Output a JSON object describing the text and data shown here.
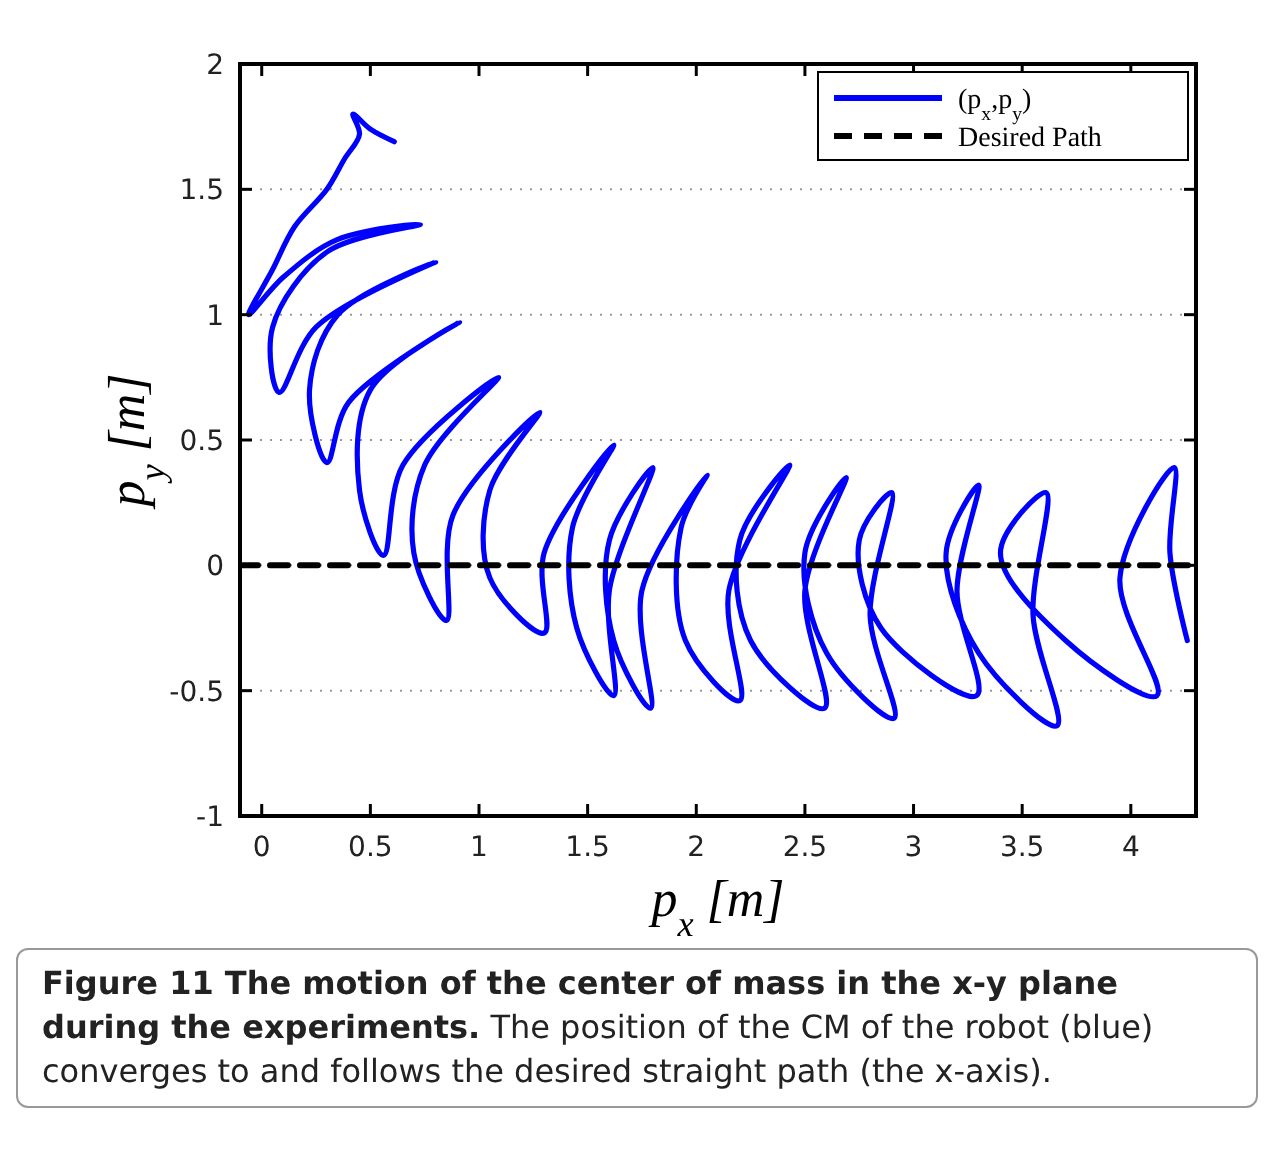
{
  "chart_data": {
    "type": "line",
    "title": "Figure 11 The motion of the center of mass in the x-y plane during the experiments.",
    "annotations": [
      "The position of the CM of the robot (blue) converges to and follows the desired straight path (the x-axis)."
    ],
    "xlabel": "p$_{x}$ [m]",
    "ylabel": "p$_{y}$ [m]",
    "xlim": [
      -0.1,
      4.3
    ],
    "ylim": [
      -1,
      2
    ],
    "xticks": [
      0,
      0.5,
      1,
      1.5,
      2,
      2.5,
      3,
      3.5,
      4
    ],
    "yticks": [
      -1,
      -0.5,
      0,
      0.5,
      1,
      1.5,
      2
    ],
    "grid": "y",
    "legend": "top right",
    "marker": "none",
    "series": [
      {
        "name": "(p$_{x}$,p$_{y}$)",
        "color": "#0000ff",
        "line_style": "solid",
        "x": [
          0.61,
          0.5,
          0.42,
          0.45,
          0.38,
          0.3,
          0.15,
          0.05,
          -0.06,
          0.1,
          0.35,
          0.73,
          0.3,
          0.05,
          0.08,
          0.25,
          0.8,
          0.35,
          0.22,
          0.3,
          0.4,
          0.91,
          0.5,
          0.45,
          0.56,
          0.65,
          1.09,
          0.75,
          0.7,
          0.85,
          0.88,
          1.28,
          1.05,
          1.05,
          1.3,
          1.3,
          1.62,
          1.43,
          1.45,
          1.62,
          1.6,
          1.8,
          1.6,
          1.62,
          1.79,
          1.75,
          2.05,
          1.93,
          1.95,
          2.2,
          2.15,
          2.43,
          2.2,
          2.25,
          2.59,
          2.5,
          2.69,
          2.5,
          2.6,
          2.91,
          2.8,
          2.9,
          2.75,
          2.85,
          3.29,
          3.2,
          3.3,
          3.15,
          3.3,
          3.66,
          3.55,
          3.61,
          3.4,
          3.7,
          4.12,
          3.95,
          4.2,
          4.18,
          4.26
        ],
        "values": [
          1.69,
          1.74,
          1.8,
          1.72,
          1.62,
          1.5,
          1.35,
          1.18,
          1.0,
          1.15,
          1.3,
          1.36,
          1.25,
          0.95,
          0.69,
          0.95,
          1.21,
          1.0,
          0.7,
          0.41,
          0.65,
          0.97,
          0.7,
          0.3,
          0.04,
          0.4,
          0.75,
          0.4,
          0.05,
          -0.22,
          0.2,
          0.61,
          0.3,
          -0.05,
          -0.27,
          0.05,
          0.48,
          0.15,
          -0.25,
          -0.52,
          -0.1,
          0.39,
          0.1,
          -0.3,
          -0.57,
          -0.1,
          0.36,
          0.15,
          -0.3,
          -0.54,
          -0.1,
          0.4,
          0.1,
          -0.3,
          -0.57,
          -0.1,
          0.35,
          0.05,
          -0.35,
          -0.61,
          -0.2,
          0.29,
          0.1,
          -0.25,
          -0.52,
          -0.1,
          0.32,
          0.05,
          -0.35,
          -0.64,
          -0.2,
          0.29,
          0.05,
          -0.3,
          -0.52,
          -0.05,
          0.39,
          0.05,
          -0.3
        ]
      },
      {
        "name": "Desired Path",
        "color": "#000000",
        "line_style": "dashed",
        "x": [
          -0.1,
          4.3
        ],
        "values": [
          0,
          0
        ]
      }
    ]
  }
}
